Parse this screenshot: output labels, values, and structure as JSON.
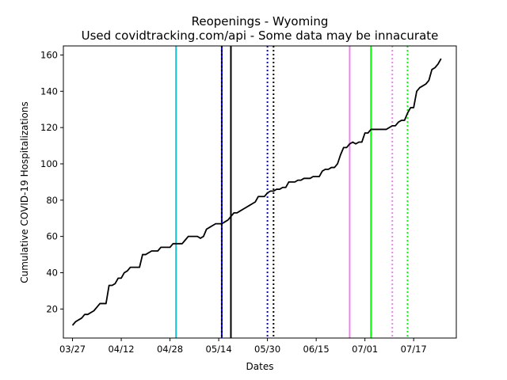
{
  "chart_data": {
    "type": "line",
    "title": "Reopenings - Wyoming",
    "subtitle": "Used covidtracking.com/api - Some data may be innacurate",
    "xlabel": "Dates",
    "ylabel": "Cumulative COVID-19 Hospitalizations",
    "x_ticks": [
      "03/27",
      "04/12",
      "04/28",
      "05/14",
      "05/30",
      "06/15",
      "07/01",
      "07/17"
    ],
    "y_ticks": [
      20,
      40,
      60,
      80,
      100,
      120,
      140,
      160
    ],
    "xlim": [
      "2020-03-24",
      "2020-07-31"
    ],
    "ylim": [
      4,
      165
    ],
    "grid": false,
    "series": [
      {
        "color": "#000000",
        "points": [
          [
            "2020-03-27",
            11
          ],
          [
            "2020-03-28",
            13
          ],
          [
            "2020-03-29",
            14
          ],
          [
            "2020-03-30",
            15
          ],
          [
            "2020-03-31",
            17
          ],
          [
            "2020-04-01",
            17
          ],
          [
            "2020-04-02",
            18
          ],
          [
            "2020-04-03",
            19
          ],
          [
            "2020-04-04",
            21
          ],
          [
            "2020-04-05",
            23
          ],
          [
            "2020-04-06",
            23
          ],
          [
            "2020-04-07",
            23
          ],
          [
            "2020-04-08",
            33
          ],
          [
            "2020-04-09",
            33
          ],
          [
            "2020-04-10",
            34
          ],
          [
            "2020-04-11",
            37
          ],
          [
            "2020-04-12",
            37
          ],
          [
            "2020-04-13",
            40
          ],
          [
            "2020-04-14",
            41
          ],
          [
            "2020-04-15",
            43
          ],
          [
            "2020-04-16",
            43
          ],
          [
            "2020-04-17",
            43
          ],
          [
            "2020-04-18",
            43
          ],
          [
            "2020-04-19",
            50
          ],
          [
            "2020-04-20",
            50
          ],
          [
            "2020-04-21",
            51
          ],
          [
            "2020-04-22",
            52
          ],
          [
            "2020-04-23",
            52
          ],
          [
            "2020-04-24",
            52
          ],
          [
            "2020-04-25",
            54
          ],
          [
            "2020-04-26",
            54
          ],
          [
            "2020-04-27",
            54
          ],
          [
            "2020-04-28",
            54
          ],
          [
            "2020-04-29",
            56
          ],
          [
            "2020-04-30",
            56
          ],
          [
            "2020-05-01",
            56
          ],
          [
            "2020-05-02",
            56
          ],
          [
            "2020-05-03",
            58
          ],
          [
            "2020-05-04",
            60
          ],
          [
            "2020-05-05",
            60
          ],
          [
            "2020-05-06",
            60
          ],
          [
            "2020-05-07",
            60
          ],
          [
            "2020-05-08",
            59
          ],
          [
            "2020-05-09",
            60
          ],
          [
            "2020-05-10",
            64
          ],
          [
            "2020-05-11",
            65
          ],
          [
            "2020-05-12",
            66
          ],
          [
            "2020-05-13",
            67
          ],
          [
            "2020-05-14",
            67
          ],
          [
            "2020-05-15",
            67
          ],
          [
            "2020-05-16",
            68
          ],
          [
            "2020-05-17",
            69
          ],
          [
            "2020-05-18",
            71
          ],
          [
            "2020-05-19",
            73
          ],
          [
            "2020-05-20",
            73
          ],
          [
            "2020-05-21",
            74
          ],
          [
            "2020-05-22",
            75
          ],
          [
            "2020-05-23",
            76
          ],
          [
            "2020-05-24",
            77
          ],
          [
            "2020-05-25",
            78
          ],
          [
            "2020-05-26",
            79
          ],
          [
            "2020-05-27",
            82
          ],
          [
            "2020-05-28",
            82
          ],
          [
            "2020-05-29",
            82
          ],
          [
            "2020-05-30",
            84
          ],
          [
            "2020-05-31",
            85
          ],
          [
            "2020-06-01",
            85
          ],
          [
            "2020-06-02",
            86
          ],
          [
            "2020-06-03",
            86
          ],
          [
            "2020-06-04",
            87
          ],
          [
            "2020-06-05",
            87
          ],
          [
            "2020-06-06",
            90
          ],
          [
            "2020-06-07",
            90
          ],
          [
            "2020-06-08",
            90
          ],
          [
            "2020-06-09",
            91
          ],
          [
            "2020-06-10",
            91
          ],
          [
            "2020-06-11",
            92
          ],
          [
            "2020-06-12",
            92
          ],
          [
            "2020-06-13",
            92
          ],
          [
            "2020-06-14",
            93
          ],
          [
            "2020-06-15",
            93
          ],
          [
            "2020-06-16",
            93
          ],
          [
            "2020-06-17",
            96
          ],
          [
            "2020-06-18",
            97
          ],
          [
            "2020-06-19",
            97
          ],
          [
            "2020-06-20",
            98
          ],
          [
            "2020-06-21",
            98
          ],
          [
            "2020-06-22",
            100
          ],
          [
            "2020-06-23",
            105
          ],
          [
            "2020-06-24",
            109
          ],
          [
            "2020-06-25",
            109
          ],
          [
            "2020-06-26",
            111
          ],
          [
            "2020-06-27",
            112
          ],
          [
            "2020-06-28",
            111
          ],
          [
            "2020-06-29",
            112
          ],
          [
            "2020-06-30",
            112
          ],
          [
            "2020-07-01",
            117
          ],
          [
            "2020-07-02",
            117
          ],
          [
            "2020-07-03",
            119
          ],
          [
            "2020-07-04",
            119
          ],
          [
            "2020-07-05",
            119
          ],
          [
            "2020-07-06",
            119
          ],
          [
            "2020-07-07",
            119
          ],
          [
            "2020-07-08",
            119
          ],
          [
            "2020-07-09",
            120
          ],
          [
            "2020-07-10",
            121
          ],
          [
            "2020-07-11",
            121
          ],
          [
            "2020-07-12",
            123
          ],
          [
            "2020-07-13",
            124
          ],
          [
            "2020-07-14",
            124
          ],
          [
            "2020-07-15",
            128
          ],
          [
            "2020-07-16",
            131
          ],
          [
            "2020-07-17",
            131
          ],
          [
            "2020-07-18",
            140
          ],
          [
            "2020-07-19",
            142
          ],
          [
            "2020-07-20",
            143
          ],
          [
            "2020-07-21",
            144
          ],
          [
            "2020-07-22",
            146
          ],
          [
            "2020-07-23",
            152
          ],
          [
            "2020-07-24",
            153
          ],
          [
            "2020-07-25",
            155
          ],
          [
            "2020-07-26",
            158
          ]
        ]
      }
    ],
    "vertical_lines": [
      {
        "date": "2020-04-30",
        "color": "#17becf",
        "style": "solid"
      },
      {
        "date": "2020-05-15",
        "color": "#0000ff",
        "style": "solid"
      },
      {
        "date": "2020-05-15",
        "color": "#000000",
        "style": "dotted"
      },
      {
        "date": "2020-05-18",
        "color": "#000000",
        "style": "solid"
      },
      {
        "date": "2020-05-30",
        "color": "#0000ff",
        "style": "dotted"
      },
      {
        "date": "2020-06-01",
        "color": "#000000",
        "style": "dotted"
      },
      {
        "date": "2020-06-26",
        "color": "#ee82ee",
        "style": "solid"
      },
      {
        "date": "2020-07-03",
        "color": "#00ff00",
        "style": "solid"
      },
      {
        "date": "2020-07-10",
        "color": "#ee82ee",
        "style": "dotted"
      },
      {
        "date": "2020-07-15",
        "color": "#00ff00",
        "style": "dotted"
      }
    ]
  }
}
